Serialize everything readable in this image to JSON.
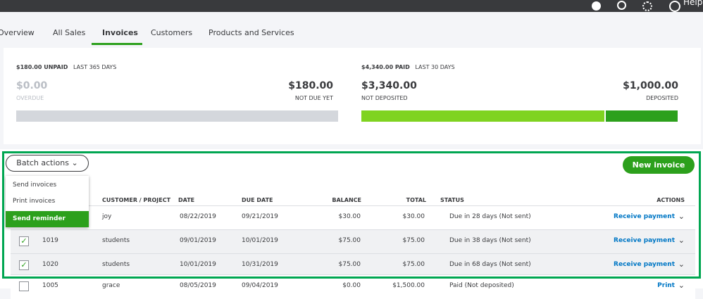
{
  "topbar": {
    "help": "Help"
  },
  "tabs": [
    "Overview",
    "All Sales",
    "Invoices",
    "Customers",
    "Products and Services"
  ],
  "summary": {
    "unpaid": {
      "label": "$180.00 UNPAID",
      "period": "LAST 365 DAYS",
      "overdue_amount": "$0.00",
      "overdue_label": "OVERDUE",
      "not_due_amount": "$180.00",
      "not_due_label": "NOT DUE YET"
    },
    "paid": {
      "label": "$4,340.00 PAID",
      "period": "LAST 30 DAYS",
      "not_deposited_amount": "$3,340.00",
      "not_deposited_label": "NOT DEPOSITED",
      "deposited_amount": "$1,000.00",
      "deposited_label": "DEPOSITED"
    }
  },
  "batch": {
    "button": "Batch actions",
    "menu": [
      "Send invoices",
      "Print invoices",
      "Send reminder"
    ]
  },
  "new_invoice": "New invoice",
  "table": {
    "headers": [
      "CUSTOMER / PROJECT",
      "DATE",
      "DUE DATE",
      "BALANCE",
      "TOTAL",
      "STATUS",
      "ACTIONS"
    ],
    "rows": [
      [
        "",
        "joy",
        "08/22/2019",
        "09/21/2019",
        "$30.00",
        "$30.00",
        "Due in 28 days (Not sent)",
        "Receive payment"
      ],
      [
        "1019",
        "students",
        "09/01/2019",
        "10/01/2019",
        "$75.00",
        "$75.00",
        "Due in 38 days (Not sent)",
        "Receive payment"
      ],
      [
        "1020",
        "students",
        "10/01/2019",
        "10/31/2019",
        "$75.00",
        "$75.00",
        "Due in 68 days (Not sent)",
        "Receive payment"
      ],
      [
        "1005",
        "grace",
        "08/05/2019",
        "09/04/2019",
        "$0.00",
        "$1,500.00",
        "Paid (Not deposited)",
        "Print"
      ]
    ]
  }
}
